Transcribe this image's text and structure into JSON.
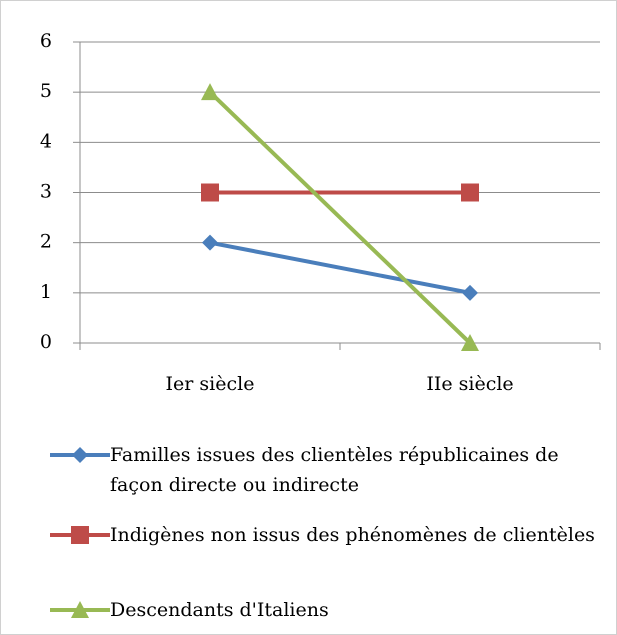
{
  "chart_data": {
    "type": "line",
    "categories": [
      "Ier siècle",
      "IIe siècle"
    ],
    "series": [
      {
        "name": "Familles issues des clientèles républicaines de façon directe ou indirecte",
        "color": "#4a7ebb",
        "marker": "diamond",
        "values": [
          2,
          1
        ]
      },
      {
        "name": "Indigènes non issus des phénomènes de clientèles",
        "color": "#be4b48",
        "marker": "square",
        "values": [
          3,
          3
        ]
      },
      {
        "name": "Descendants d'Italiens",
        "color": "#98b954",
        "marker": "triangle",
        "values": [
          5,
          0
        ]
      }
    ],
    "ylim": [
      0,
      6
    ],
    "yticks": [
      0,
      1,
      2,
      3,
      4,
      5,
      6
    ],
    "grid": true,
    "legend": "bottom"
  }
}
